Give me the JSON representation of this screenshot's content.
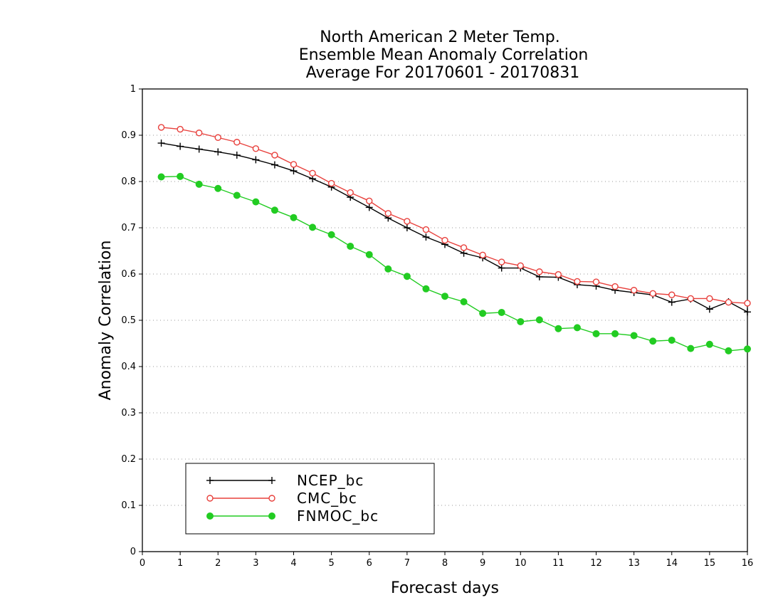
{
  "chart_data": {
    "type": "line",
    "title_lines": [
      "North American 2 Meter Temp.",
      "Ensemble Mean Anomaly Correlation",
      "Average For 20170601 - 20170831"
    ],
    "xlabel": "Forecast days",
    "ylabel": "Anomaly Correlation",
    "xlim": [
      0,
      16
    ],
    "ylim": [
      0,
      1
    ],
    "xticks": [
      "0",
      "1",
      "2",
      "3",
      "4",
      "5",
      "6",
      "7",
      "8",
      "9",
      "10",
      "11",
      "12",
      "13",
      "14",
      "15",
      "16"
    ],
    "yticks": [
      "0",
      "0.1",
      "0.2",
      "0.3",
      "0.4",
      "0.5",
      "0.6",
      "0.7",
      "0.8",
      "0.9",
      "1"
    ],
    "grid": true,
    "legend_position": "bottom-left",
    "x": [
      0.5,
      1,
      1.5,
      2,
      2.5,
      3,
      3.5,
      4,
      4.5,
      5,
      5.5,
      6,
      6.5,
      7,
      7.5,
      8,
      8.5,
      9,
      9.5,
      10,
      10.5,
      11,
      11.5,
      12,
      12.5,
      13,
      13.5,
      14,
      14.5,
      15,
      15.5,
      16
    ],
    "series": [
      {
        "name": "NCEP_bc",
        "color": "#000000",
        "marker": "plus",
        "values": [
          0.883,
          0.876,
          0.87,
          0.864,
          0.857,
          0.847,
          0.836,
          0.823,
          0.806,
          0.788,
          0.766,
          0.744,
          0.721,
          0.7,
          0.68,
          0.664,
          0.645,
          0.635,
          0.613,
          0.613,
          0.594,
          0.593,
          0.577,
          0.574,
          0.565,
          0.56,
          0.555,
          0.539,
          0.546,
          0.524,
          0.54,
          0.518
        ]
      },
      {
        "name": "CMC_bc",
        "color": "#e8403c",
        "marker": "open-circle",
        "values": [
          0.917,
          0.913,
          0.905,
          0.895,
          0.885,
          0.871,
          0.857,
          0.837,
          0.818,
          0.796,
          0.776,
          0.758,
          0.731,
          0.714,
          0.696,
          0.673,
          0.657,
          0.641,
          0.626,
          0.618,
          0.605,
          0.599,
          0.584,
          0.583,
          0.573,
          0.565,
          0.558,
          0.555,
          0.547,
          0.547,
          0.539,
          0.537
        ]
      },
      {
        "name": "FNMOC_bc",
        "color": "#22cc22",
        "marker": "filled-circle",
        "values": [
          0.81,
          0.811,
          0.794,
          0.785,
          0.77,
          0.756,
          0.738,
          0.722,
          0.701,
          0.685,
          0.66,
          0.642,
          0.611,
          0.595,
          0.568,
          0.552,
          0.54,
          0.515,
          0.517,
          0.497,
          0.501,
          0.482,
          0.484,
          0.471,
          0.471,
          0.467,
          0.455,
          0.457,
          0.439,
          0.448,
          0.434,
          0.438
        ]
      }
    ]
  }
}
